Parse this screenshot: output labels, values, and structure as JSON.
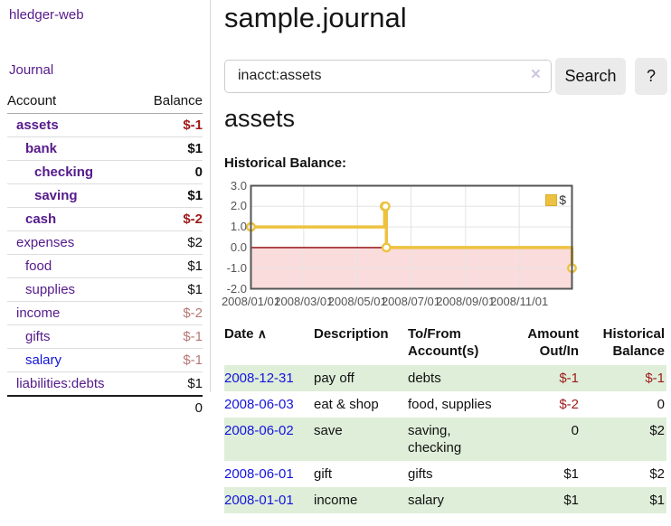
{
  "app": {
    "title": "hledger-web"
  },
  "sidebar": {
    "nav_journal": "Journal",
    "accounts": {
      "headers": {
        "account": "Account",
        "balance": "Balance"
      },
      "rows": [
        {
          "account": "assets",
          "balance": "$-1",
          "depth": 1,
          "bold": true
        },
        {
          "account": "bank",
          "balance": "$1",
          "depth": 2,
          "bold": true
        },
        {
          "account": "checking",
          "balance": "0",
          "depth": 3,
          "bold": true
        },
        {
          "account": "saving",
          "balance": "$1",
          "depth": 3,
          "bold": true
        },
        {
          "account": "cash",
          "balance": "$-2",
          "depth": 2,
          "bold": true
        },
        {
          "account": "expenses",
          "balance": "$2",
          "depth": 1,
          "bold": false
        },
        {
          "account": "food",
          "balance": "$1",
          "depth": 2,
          "bold": false
        },
        {
          "account": "supplies",
          "balance": "$1",
          "depth": 2,
          "bold": false
        },
        {
          "account": "income",
          "balance": "$-2",
          "depth": 1,
          "bold": false
        },
        {
          "account": "gifts",
          "balance": "$-1",
          "depth": 2,
          "bold": false
        },
        {
          "account": "salary",
          "balance": "$-1",
          "depth": 2,
          "bold": false,
          "link": "blue"
        },
        {
          "account": "liabilities:debts",
          "balance": "$1",
          "depth": 1,
          "bold": false
        }
      ],
      "total": "0"
    }
  },
  "main": {
    "title": "sample.journal",
    "search": {
      "value": "inacct:assets",
      "clear_icon": "×",
      "search_label": "Search",
      "help_label": "?"
    },
    "account_heading": "assets",
    "chart_heading": "Historical Balance:"
  },
  "chart_data": {
    "type": "line",
    "step": true,
    "title": "Historical Balance",
    "series": [
      {
        "name": "$",
        "color": "#EDC240",
        "points": [
          [
            "2008-01-01",
            1
          ],
          [
            "2008-06-01",
            2
          ],
          [
            "2008-06-02",
            2
          ],
          [
            "2008-06-03",
            0
          ],
          [
            "2008-12-31",
            -1
          ]
        ]
      }
    ],
    "xrange": [
      "2008-01-01",
      "2008-12-31"
    ],
    "ylim": [
      -2,
      3
    ],
    "yticks": [
      {
        "v": 3,
        "label": "3.0"
      },
      {
        "v": 2,
        "label": "2.0"
      },
      {
        "v": 1,
        "label": "1.0"
      },
      {
        "v": 0,
        "label": "0.0"
      },
      {
        "v": -1,
        "label": "-1.0"
      },
      {
        "v": -2,
        "label": "-2.0"
      }
    ],
    "xticks": [
      {
        "date": "2008-01-01",
        "label": "2008/01/01"
      },
      {
        "date": "2008-03-01",
        "label": "2008/03/01"
      },
      {
        "date": "2008-05-01",
        "label": "2008/05/01"
      },
      {
        "date": "2008-07-01",
        "label": "2008/07/01"
      },
      {
        "date": "2008-09-01",
        "label": "2008/09/01"
      },
      {
        "date": "2008-11-01",
        "label": "2008/11/01"
      }
    ],
    "legend": {
      "label": "$",
      "position": "top-right"
    },
    "grid": true,
    "negative_region": {
      "from": 0,
      "to": -2
    },
    "colors": {
      "line": "#EDC240",
      "marker_fill": "#ffffff",
      "gridline": "#e3e3e3",
      "border": "#545454",
      "tick_text": "#545454",
      "zero_line": "#8b0000",
      "negative_region": "#fbdcdc"
    }
  },
  "transactions": {
    "headers": [
      "Date",
      "Description",
      "To/From Account(s)",
      "Amount Out/In",
      "Historical Balance"
    ],
    "sort_icon": "∧",
    "rows": [
      {
        "date": "2008-12-31",
        "description": "pay off",
        "accounts": "debts",
        "amount": "$-1",
        "balance": "$-1"
      },
      {
        "date": "2008-06-03",
        "description": "eat & shop",
        "accounts": "food, supplies",
        "amount": "$-2",
        "balance": "0"
      },
      {
        "date": "2008-06-02",
        "description": "save",
        "accounts": "saving, checking",
        "amount": "0",
        "balance": "$2"
      },
      {
        "date": "2008-06-01",
        "description": "gift",
        "accounts": "gifts",
        "amount": "$1",
        "balance": "$2"
      },
      {
        "date": "2008-01-01",
        "description": "income",
        "accounts": "salary",
        "amount": "$1",
        "balance": "$1"
      }
    ]
  },
  "colors": {
    "link_visited_purple": "#551a8b",
    "link_blue": "#1414dd",
    "negative_strong": "#9e1a1a",
    "negative_muted": "#b87676",
    "row_stripe_green": "#dfeed9",
    "button_bg": "#ebebeb"
  }
}
